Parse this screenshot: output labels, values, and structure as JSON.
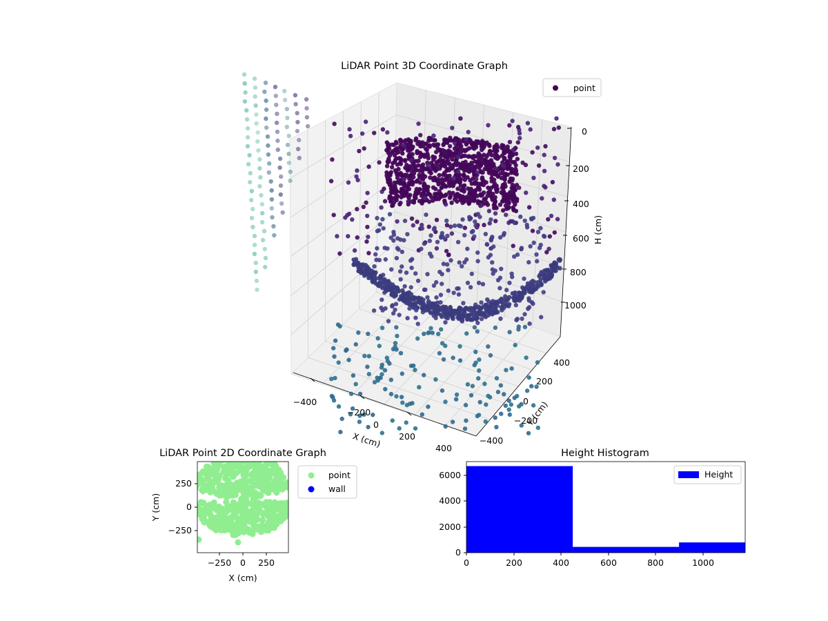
{
  "chart_data": [
    {
      "type": "scatter",
      "projection": "3d",
      "title": "LiDAR Point 3D Coordinate Graph",
      "xlabel": "X (cm)",
      "ylabel": "Y (cm)",
      "zlabel": "H (cm)",
      "xticks": [
        "−400",
        "−200",
        "0",
        "200",
        "400"
      ],
      "yticks": [
        "−400",
        "−200",
        "0",
        "200",
        "400"
      ],
      "zticks": [
        "0",
        "200",
        "400",
        "600",
        "800",
        "1000"
      ],
      "zaxis_inverted": true,
      "xlim": [
        -500,
        500
      ],
      "ylim": [
        -500,
        500
      ],
      "zlim": [
        0,
        1100
      ],
      "colormap": "viridis",
      "legend": {
        "entries": [
          "point"
        ],
        "placement": "top-right",
        "marker_color": "#440154"
      },
      "grid": true
    },
    {
      "type": "scatter",
      "title": "LiDAR Point 2D Coordinate Graph",
      "xlabel": "X (cm)",
      "ylabel": "Y (cm)",
      "xticks": [
        "−250",
        "0",
        "250"
      ],
      "yticks": [
        "250",
        "0",
        "−250"
      ],
      "xlim": [
        -480,
        480
      ],
      "ylim": [
        -470,
        470
      ],
      "series": [
        {
          "name": "point",
          "color": "#90ee90"
        },
        {
          "name": "wall",
          "color": "#0000ff",
          "values": []
        }
      ],
      "legend": {
        "placement": "outside-right"
      }
    },
    {
      "type": "bar",
      "subtype": "histogram",
      "title": "Height Histogram",
      "bins": [
        [
          0,
          450
        ],
        [
          450,
          900
        ],
        [
          900,
          1180
        ]
      ],
      "values": [
        6750,
        450,
        800
      ],
      "xticks": [
        "0",
        "200",
        "400",
        "600",
        "800",
        "1000"
      ],
      "yticks": [
        "0",
        "2000",
        "4000",
        "6000"
      ],
      "xlim": [
        0,
        1180
      ],
      "ylim": [
        0,
        7100
      ],
      "color": "#0000ff",
      "series": [
        {
          "name": "Height"
        }
      ],
      "legend": {
        "placement": "top-right"
      }
    }
  ]
}
